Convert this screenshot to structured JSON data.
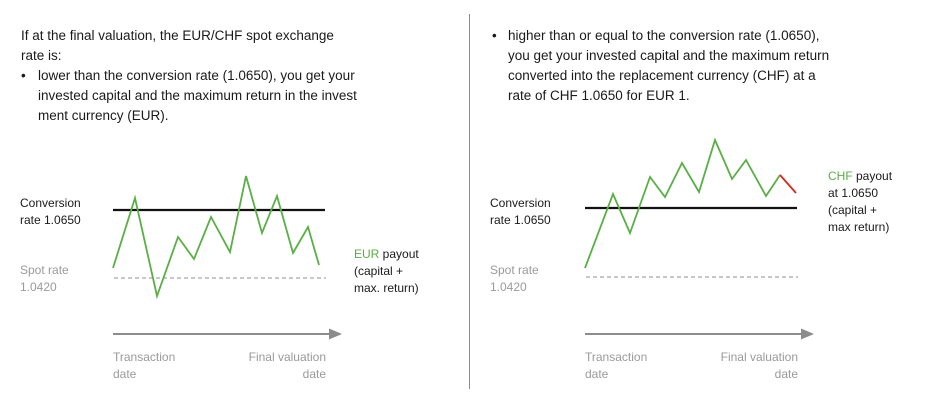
{
  "left": {
    "intro": [
      "If at the final valuation, the EUR/CHF spot exchange",
      "rate is:"
    ],
    "bullet": "•",
    "bullet_lines": [
      "lower than the conversion rate (1.0650), you get your",
      "invested capital and the maximum return in the invest",
      "ment currency (EUR)."
    ],
    "conversion_label": [
      "Conversion",
      "rate 1.0650"
    ],
    "spot_label": [
      "Spot rate",
      "1.0420"
    ],
    "payout_currency": "EUR",
    "payout_word": " payout",
    "payout_lines": [
      "(capital +",
      "max. return)"
    ],
    "axis_start": [
      "Transaction",
      "date"
    ],
    "axis_end": [
      "Final valuation",
      "date"
    ]
  },
  "right": {
    "bullet": "•",
    "bullet_lines": [
      "higher than or equal to the conversion rate (1.0650),",
      "you get your invested capital and the maximum return",
      "converted into the replacement currency (CHF) at a",
      "rate of CHF 1.0650 for EUR 1."
    ],
    "conversion_label": [
      "Conversion",
      "rate 1.0650"
    ],
    "spot_label": [
      "Spot rate",
      "1.0420"
    ],
    "payout_currency": "CHF",
    "payout_word": " payout",
    "payout_lines": [
      "at 1.0650",
      "(capital +",
      "max return)"
    ],
    "axis_start": [
      "Transaction",
      "date"
    ],
    "axis_end": [
      "Final valuation",
      "date"
    ]
  },
  "colors": {
    "series": "#58b044",
    "series_highlight": "#d9261c",
    "conversion_line": "#111111",
    "spot_line": "#a6a6a6",
    "axis_arrow": "#8c8c8c",
    "divider": "#8c8c8c"
  }
}
